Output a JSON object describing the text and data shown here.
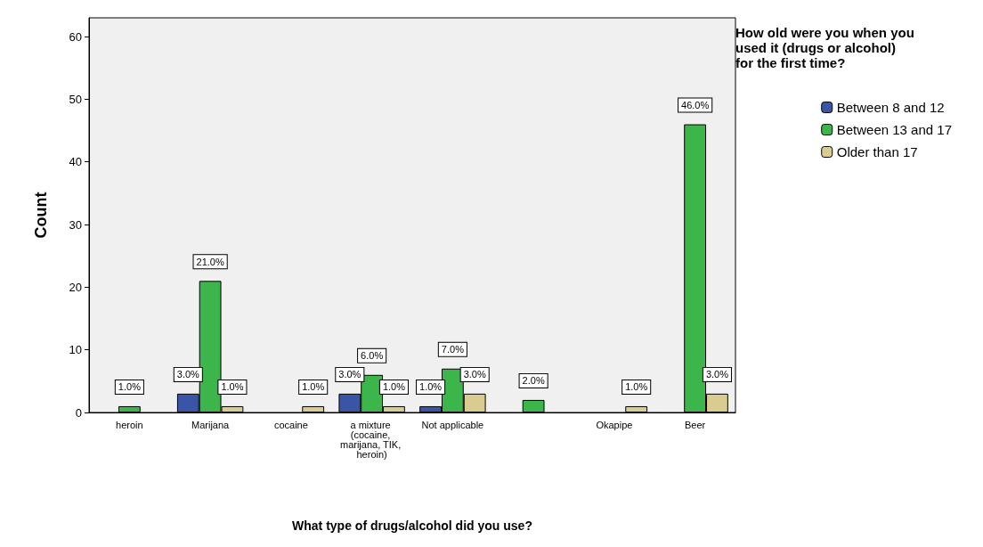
{
  "chart_data": {
    "type": "bar",
    "xlabel": "What type of drugs/alcohol did you use?",
    "ylabel": "Count",
    "legend_title": "How old were you when you used it (drugs or alcohol) for the first time?",
    "categories": [
      "heroin",
      "Marijana",
      "cocaine",
      "a mixture (cocaine, marijana, TIK, heroin)",
      "Not applicable",
      null,
      "Okapipe",
      "Beer"
    ],
    "series": [
      {
        "name": "Between 8 and 12",
        "color": "#3a55a6",
        "values": [
          null,
          3,
          null,
          3,
          1,
          null,
          null,
          null
        ],
        "value_labels": [
          null,
          "3.0%",
          null,
          "3.0%",
          "1.0%",
          null,
          null,
          null
        ]
      },
      {
        "name": "Between 13 and 17",
        "color": "#3cb54a",
        "values": [
          1,
          21,
          null,
          6,
          7,
          2,
          null,
          46
        ],
        "value_labels": [
          "1.0%",
          "21.0%",
          null,
          "6.0%",
          "7.0%",
          "2.0%",
          null,
          "46.0%"
        ]
      },
      {
        "name": "Older than 17",
        "color": "#d8cc90",
        "values": [
          null,
          1,
          1,
          1,
          3,
          null,
          1,
          3
        ],
        "value_labels": [
          null,
          "1.0%",
          "1.0%",
          "1.0%",
          "3.0%",
          null,
          "1.0%",
          "3.0%"
        ]
      }
    ],
    "ylim": [
      0,
      63
    ],
    "yticks": [
      0,
      10,
      20,
      30,
      40,
      50,
      60
    ],
    "grid": false,
    "legend": "top right"
  }
}
